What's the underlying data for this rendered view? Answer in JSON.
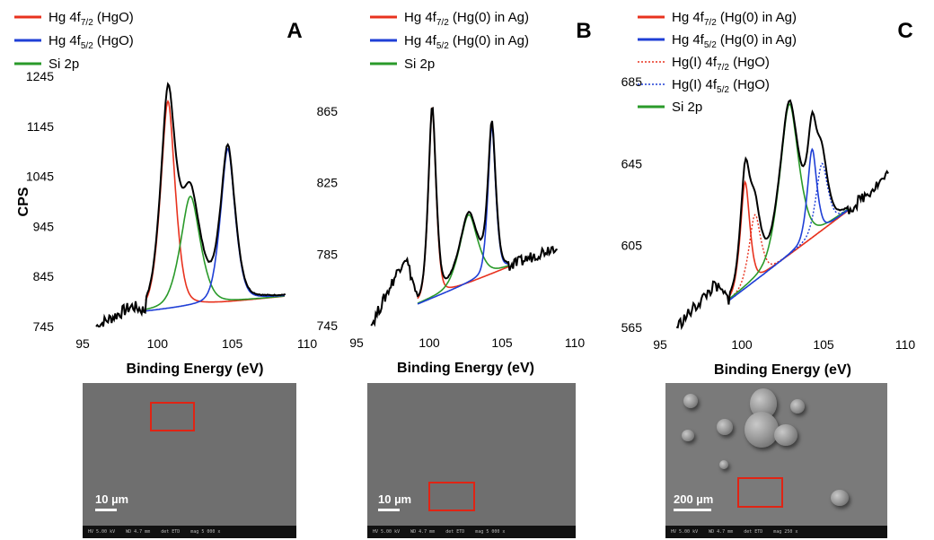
{
  "chart_data": [
    {
      "panel": "A",
      "type": "line",
      "xlabel": "Binding Energy (eV)",
      "ylabel": "CPS",
      "xlim": [
        95,
        110
      ],
      "ylim": [
        745,
        1245
      ],
      "xticks": [
        95,
        100,
        105,
        110
      ],
      "yticks": [
        745,
        845,
        945,
        1045,
        1145,
        1245
      ],
      "legend_position": "top-left",
      "legend": [
        {
          "base": "Hg 4f",
          "sub": "7/2",
          "rest": " (HgO)",
          "color": "#e8321e",
          "style": "solid"
        },
        {
          "base": "Hg 4f",
          "sub": "5/2",
          "rest": " (HgO)",
          "color": "#1f3fd6",
          "style": "solid"
        },
        {
          "base": "Si 2p",
          "sub": "",
          "rest": "",
          "color": "#2a9a2a",
          "style": "solid"
        }
      ],
      "baseline": {
        "x": [
          99.2,
          108.5
        ],
        "y": [
          775,
          805
        ]
      },
      "peaks": [
        {
          "name": "Hg 4f7/2 (HgO)",
          "center": 100.7,
          "height": 1195,
          "width": 0.55,
          "color": "#e8321e",
          "style": "solid"
        },
        {
          "name": "Si 2p",
          "center": 102.2,
          "height": 1005,
          "width": 0.75,
          "color": "#2a9a2a",
          "style": "solid"
        },
        {
          "name": "Hg 4f5/2 (HgO)",
          "center": 104.7,
          "height": 1100,
          "width": 0.55,
          "color": "#1f3fd6",
          "style": "solid"
        }
      ],
      "raw": {
        "x_start": 95.9,
        "x_end": 108.6,
        "left_shoulder": 785,
        "right_end": 815
      }
    },
    {
      "panel": "B",
      "type": "line",
      "xlabel": "Binding Energy (eV)",
      "ylabel": "",
      "xlim": [
        95,
        110
      ],
      "ylim": [
        745,
        875
      ],
      "xticks": [
        95,
        100,
        105,
        110
      ],
      "yticks": [
        745,
        785,
        825,
        865
      ],
      "legend_position": "top-left",
      "legend": [
        {
          "base": "Hg 4f",
          "sub": "7/2",
          "rest": " (Hg(0) in Ag)",
          "color": "#e8321e",
          "style": "solid"
        },
        {
          "base": "Hg 4f",
          "sub": "5/2",
          "rest": " (Hg(0) in Ag)",
          "color": "#1f3fd6",
          "style": "solid"
        },
        {
          "base": "Si 2p",
          "sub": "",
          "rest": "",
          "color": "#2a9a2a",
          "style": "solid"
        }
      ],
      "baseline": {
        "x": [
          99.2,
          105.5
        ],
        "y": [
          757,
          778
        ]
      },
      "peaks": [
        {
          "name": "Hg 4f7/2 (Hg(0) in Ag)",
          "center": 100.2,
          "height": 867,
          "width": 0.3,
          "color": "#e8321e",
          "style": "solid"
        },
        {
          "name": "Si 2p",
          "center": 102.7,
          "height": 807,
          "width": 0.7,
          "color": "#2a9a2a",
          "style": "solid"
        },
        {
          "name": "Hg 4f5/2 (Hg(0) in Ag)",
          "center": 104.3,
          "height": 856,
          "width": 0.3,
          "color": "#1f3fd6",
          "style": "solid"
        }
      ],
      "raw": {
        "x_start": 96.0,
        "x_end": 108.8,
        "left_shoulder": 783,
        "right_end": 790
      }
    },
    {
      "panel": "C",
      "type": "line",
      "xlabel": "Binding Energy (eV)",
      "ylabel": "",
      "xlim": [
        95,
        110
      ],
      "ylim": [
        565,
        685
      ],
      "xticks": [
        95,
        100,
        105,
        110
      ],
      "yticks": [
        565,
        605,
        645,
        685
      ],
      "legend_position": "top-left",
      "legend": [
        {
          "base": "Hg 4f",
          "sub": "7/2",
          "rest": " (Hg(0) in Ag)",
          "color": "#e8321e",
          "style": "solid"
        },
        {
          "base": "Hg 4f",
          "sub": "5/2",
          "rest": " (Hg(0) in Ag)",
          "color": "#1f3fd6",
          "style": "solid"
        },
        {
          "base": "Hg(I) 4f",
          "sub": "7/2",
          "rest": " (HgO)",
          "color": "#e8321e",
          "style": "dotted"
        },
        {
          "base": "Hg(I) 4f",
          "sub": "5/2",
          "rest": " (HgO)",
          "color": "#1f3fd6",
          "style": "dotted"
        },
        {
          "base": "Si 2p",
          "sub": "",
          "rest": "",
          "color": "#2a9a2a",
          "style": "solid"
        }
      ],
      "baseline": {
        "x": [
          99.2,
          106.5
        ],
        "y": [
          578,
          622
        ]
      },
      "peaks": [
        {
          "name": "Hg 4f7/2 (Hg(0) in Ag)",
          "center": 100.2,
          "height": 636,
          "width": 0.32,
          "color": "#e8321e",
          "style": "solid"
        },
        {
          "name": "Hg(I) 4f7/2 (HgO)",
          "center": 100.8,
          "height": 620,
          "width": 0.4,
          "color": "#e8321e",
          "style": "dotted"
        },
        {
          "name": "Si 2p",
          "center": 102.9,
          "height": 674,
          "width": 0.65,
          "color": "#2a9a2a",
          "style": "solid"
        },
        {
          "name": "Hg 4f5/2 (Hg(0) in Ag)",
          "center": 104.3,
          "height": 652,
          "width": 0.32,
          "color": "#1f3fd6",
          "style": "solid"
        },
        {
          "name": "Hg(I) 4f5/2 (HgO)",
          "center": 104.9,
          "height": 645,
          "width": 0.4,
          "color": "#1f3fd6",
          "style": "dotted"
        }
      ],
      "raw": {
        "x_start": 96.0,
        "x_end": 109.0,
        "left_shoulder": 585,
        "right_end": 640
      }
    }
  ],
  "panel_letters": [
    "A",
    "B",
    "C"
  ],
  "sem_images": [
    {
      "scale_label": "10 µm"
    },
    {
      "scale_label": "10 µm"
    },
    {
      "scale_label": "200 µm"
    }
  ],
  "colors": {
    "raw": "#000000",
    "grid": "none"
  }
}
